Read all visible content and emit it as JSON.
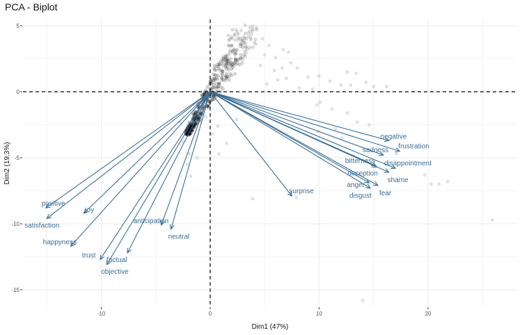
{
  "chart_data": {
    "type": "scatter",
    "subtype": "pca-biplot",
    "title": "PCA - Biplot",
    "xlabel": "Dim1 (47%)",
    "ylabel": "Dim2 (19.3%)",
    "xlim": [
      -19,
      28
    ],
    "ylim": [
      -16.5,
      5.5
    ],
    "xticks": [
      -10,
      0,
      10,
      20
    ],
    "yticks": [
      5,
      0,
      -5,
      -10,
      -15
    ],
    "grid": true,
    "reference_lines": {
      "x": 0,
      "y": 0,
      "style": "dashed"
    },
    "colors": {
      "variables": "#3a6e97",
      "individuals": "#000000",
      "grid": "#ebebeb"
    },
    "variables": [
      {
        "name": "negative",
        "x": 16.4,
        "y": -3.7
      },
      {
        "name": "frustration",
        "x": 17.4,
        "y": -4.5
      },
      {
        "name": "sadness",
        "x": 15.9,
        "y": -4.8
      },
      {
        "name": "bitterness",
        "x": 15.2,
        "y": -5.6
      },
      {
        "name": "disappointment",
        "x": 17.0,
        "y": -5.8
      },
      {
        "name": "deception",
        "x": 15.3,
        "y": -5.7
      },
      {
        "name": "shame",
        "x": 16.4,
        "y": -6.1
      },
      {
        "name": "anger",
        "x": 14.6,
        "y": -6.9
      },
      {
        "name": "fear",
        "x": 15.4,
        "y": -7.1
      },
      {
        "name": "disgust",
        "x": 14.7,
        "y": -7.3
      },
      {
        "name": "surprise",
        "x": 7.5,
        "y": -7.9
      },
      {
        "name": "positive",
        "x": -15.1,
        "y": -8.8
      },
      {
        "name": "satisfaction",
        "x": -15.0,
        "y": -9.6
      },
      {
        "name": "joy",
        "x": -11.6,
        "y": -9.2
      },
      {
        "name": "happyness",
        "x": -12.8,
        "y": -11.7
      },
      {
        "name": "trust",
        "x": -10.1,
        "y": -12.7
      },
      {
        "name": "objective",
        "x": -9.5,
        "y": -13.1
      },
      {
        "name": "factual",
        "x": -7.6,
        "y": -12.2
      },
      {
        "name": "anticipation",
        "x": -4.5,
        "y": -10.1
      },
      {
        "name": "neutral",
        "x": -3.6,
        "y": -10.4
      }
    ],
    "individuals_sparse": [
      [
        3.9,
        4.6
      ],
      [
        3.5,
        4.2
      ],
      [
        4.8,
        4.0
      ],
      [
        5.4,
        3.5
      ],
      [
        6.7,
        3.2
      ],
      [
        7.2,
        3.0
      ],
      [
        4.2,
        3.6
      ],
      [
        5.0,
        2.8
      ],
      [
        6.0,
        2.6
      ],
      [
        7.4,
        2.2
      ],
      [
        8.0,
        1.8
      ],
      [
        6.6,
        1.8
      ],
      [
        3.0,
        2.4
      ],
      [
        4.6,
        2.0
      ],
      [
        5.9,
        1.6
      ],
      [
        9.0,
        1.1
      ],
      [
        10.0,
        1.2
      ],
      [
        11.0,
        0.8
      ],
      [
        12.6,
        1.5
      ],
      [
        13.4,
        1.4
      ],
      [
        12.0,
        0.5
      ],
      [
        14.3,
        0.7
      ],
      [
        15.0,
        0.4
      ],
      [
        16.2,
        0.4
      ],
      [
        6.2,
        0.9
      ],
      [
        7.0,
        1.0
      ],
      [
        8.2,
        0.3
      ],
      [
        5.2,
        0.6
      ],
      [
        9.4,
        0.2
      ],
      [
        12.9,
        0.5
      ],
      [
        10.1,
        -0.8
      ],
      [
        9.8,
        -1.0
      ],
      [
        11.2,
        -1.3
      ],
      [
        12.6,
        -1.6
      ],
      [
        13.5,
        -2.3
      ],
      [
        14.6,
        -2.5
      ],
      [
        9.9,
        -3.0
      ],
      [
        11.5,
        -2.8
      ],
      [
        12.1,
        -3.5
      ],
      [
        17.1,
        -4.7
      ],
      [
        19.7,
        -6.3
      ],
      [
        20.3,
        -7.0
      ],
      [
        21.0,
        -7.0
      ],
      [
        21.8,
        -6.8
      ],
      [
        25.9,
        -9.7
      ],
      [
        7.9,
        -8.0
      ],
      [
        3.9,
        -8.1
      ],
      [
        14.0,
        -15.8
      ],
      [
        0.8,
        -4.7
      ],
      [
        1.5,
        -3.9
      ],
      [
        2.4,
        -2.1
      ],
      [
        -1.9,
        -4.7
      ],
      [
        -2.1,
        -5.5
      ],
      [
        -1.8,
        -6.4
      ],
      [
        -1.2,
        -5.0
      ],
      [
        -0.4,
        -1.9
      ],
      [
        0.2,
        -3.2
      ],
      [
        -2.5,
        -3.8
      ],
      [
        -1.6,
        -3.0
      ],
      [
        0.7,
        -2.6
      ],
      [
        -2.8,
        -2.3
      ]
    ],
    "individuals_dense_band": {
      "description": "dense cloud of individuals along a ray from about (-2, -3) through the origin to about (3, 4.5)",
      "from": [
        -2.2,
        -3.2
      ],
      "to": [
        2.8,
        4.6
      ],
      "count": 420
    }
  }
}
